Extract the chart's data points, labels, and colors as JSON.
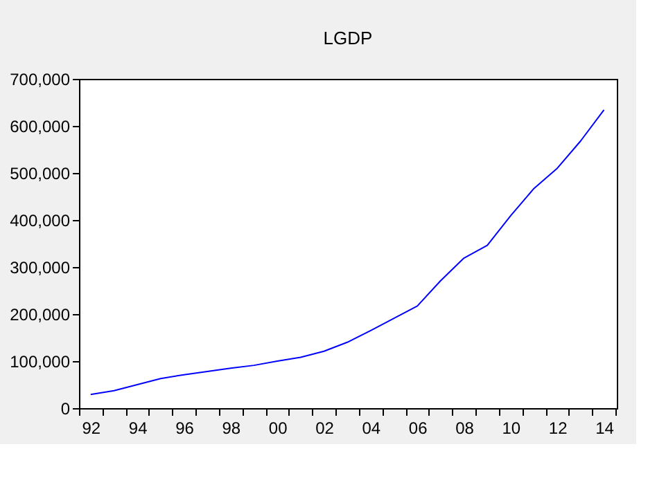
{
  "chart_data": {
    "type": "line",
    "title": "LGDP",
    "x": [
      1992,
      1993,
      1994,
      1995,
      1996,
      1997,
      1998,
      1999,
      2000,
      2001,
      2002,
      2003,
      2004,
      2005,
      2006,
      2007,
      2008,
      2009,
      2010,
      2011,
      2012,
      2013,
      2014
    ],
    "series": [
      {
        "color": "#0000ff",
        "values": [
          29000,
          37000,
          50000,
          63000,
          71000,
          78000,
          85000,
          91000,
          100000,
          108000,
          121000,
          140000,
          165000,
          191000,
          217000,
          271000,
          319000,
          346000,
          409000,
          467000,
          510000,
          568000,
          634000
        ]
      }
    ],
    "xlim": [
      1991.5,
      2014.55
    ],
    "xticks": [
      {
        "value": 1991.5,
        "label": null
      },
      {
        "value": 1992,
        "label": "92"
      },
      {
        "value": 1992.5,
        "label": null
      },
      {
        "value": 1993.5,
        "label": null
      },
      {
        "value": 1994,
        "label": "94"
      },
      {
        "value": 1994.5,
        "label": null
      },
      {
        "value": 1995.5,
        "label": null
      },
      {
        "value": 1996,
        "label": "96"
      },
      {
        "value": 1996.5,
        "label": null
      },
      {
        "value": 1997.5,
        "label": null
      },
      {
        "value": 1998,
        "label": "98"
      },
      {
        "value": 1998.5,
        "label": null
      },
      {
        "value": 1999.5,
        "label": null
      },
      {
        "value": 2000,
        "label": "00"
      },
      {
        "value": 2000.5,
        "label": null
      },
      {
        "value": 2001.5,
        "label": null
      },
      {
        "value": 2002,
        "label": "02"
      },
      {
        "value": 2002.5,
        "label": null
      },
      {
        "value": 2003.5,
        "label": null
      },
      {
        "value": 2004,
        "label": "04"
      },
      {
        "value": 2004.5,
        "label": null
      },
      {
        "value": 2005.5,
        "label": null
      },
      {
        "value": 2006,
        "label": "06"
      },
      {
        "value": 2006.5,
        "label": null
      },
      {
        "value": 2007.5,
        "label": null
      },
      {
        "value": 2008,
        "label": "08"
      },
      {
        "value": 2008.5,
        "label": null
      },
      {
        "value": 2009.5,
        "label": null
      },
      {
        "value": 2010,
        "label": "10"
      },
      {
        "value": 2010.5,
        "label": null
      },
      {
        "value": 2011.5,
        "label": null
      },
      {
        "value": 2012,
        "label": "12"
      },
      {
        "value": 2012.5,
        "label": null
      },
      {
        "value": 2013.5,
        "label": null
      },
      {
        "value": 2014,
        "label": "14"
      },
      {
        "value": 2014.5,
        "label": null
      }
    ],
    "ylim": [
      0,
      700000
    ],
    "yticks": [
      {
        "value": 0,
        "label": "0"
      },
      {
        "value": 100000,
        "label": "100,000"
      },
      {
        "value": 200000,
        "label": "200,000"
      },
      {
        "value": 300000,
        "label": "300,000"
      },
      {
        "value": 400000,
        "label": "400,000"
      },
      {
        "value": 500000,
        "label": "500,000"
      },
      {
        "value": 600000,
        "label": "600,000"
      },
      {
        "value": 700000,
        "label": "700,000"
      }
    ],
    "grid": false,
    "line_style": "solid",
    "marker": "none"
  }
}
